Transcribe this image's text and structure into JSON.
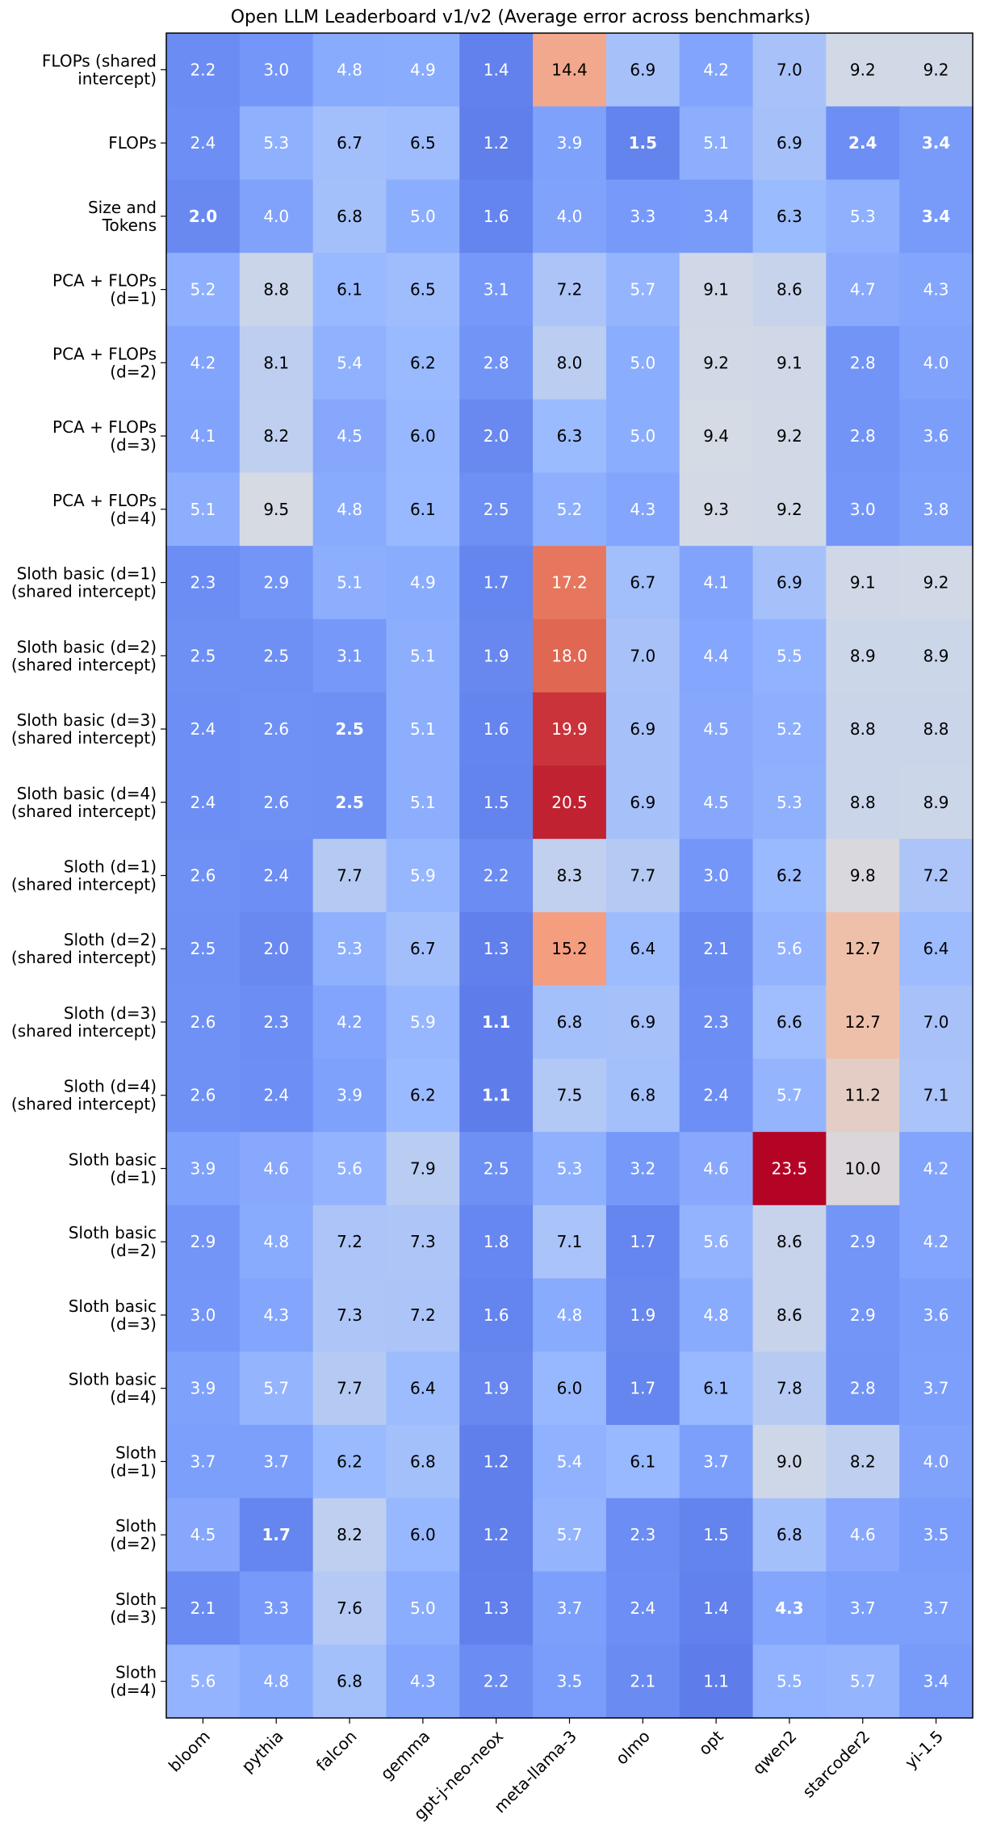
{
  "chart_data": {
    "type": "heatmap",
    "title": "Open LLM Leaderboard v1/v2 (Average error across benchmarks)",
    "xlabel": "",
    "ylabel": "",
    "columns": [
      "bloom",
      "pythia",
      "falcon",
      "gemma",
      "gpt-j-neo-neox",
      "meta-llama-3",
      "olmo",
      "opt",
      "qwen2",
      "starcoder2",
      "yi-1.5"
    ],
    "rows": [
      {
        "label": [
          "FLOPs (shared",
          "intercept)"
        ],
        "values": [
          2.2,
          3.0,
          4.8,
          4.9,
          1.4,
          14.4,
          6.9,
          4.2,
          7.0,
          9.2,
          9.2
        ]
      },
      {
        "label": [
          "FLOPs"
        ],
        "values": [
          2.4,
          5.3,
          6.7,
          6.5,
          1.2,
          3.9,
          1.5,
          5.1,
          6.9,
          2.4,
          3.4
        ]
      },
      {
        "label": [
          "Size and",
          "Tokens"
        ],
        "values": [
          2.0,
          4.0,
          6.8,
          5.0,
          1.6,
          4.0,
          3.3,
          3.4,
          6.3,
          5.3,
          3.4
        ]
      },
      {
        "label": [
          "PCA + FLOPs",
          "(d=1)"
        ],
        "values": [
          5.2,
          8.8,
          6.1,
          6.5,
          3.1,
          7.2,
          5.7,
          9.1,
          8.6,
          4.7,
          4.3
        ]
      },
      {
        "label": [
          "PCA + FLOPs",
          "(d=2)"
        ],
        "values": [
          4.2,
          8.1,
          5.4,
          6.2,
          2.8,
          8.0,
          5.0,
          9.2,
          9.1,
          2.8,
          4.0
        ]
      },
      {
        "label": [
          "PCA + FLOPs",
          "(d=3)"
        ],
        "values": [
          4.1,
          8.2,
          4.5,
          6.0,
          2.0,
          6.3,
          5.0,
          9.4,
          9.2,
          2.8,
          3.6
        ]
      },
      {
        "label": [
          "PCA + FLOPs",
          "(d=4)"
        ],
        "values": [
          5.1,
          9.5,
          4.8,
          6.1,
          2.5,
          5.2,
          4.3,
          9.3,
          9.2,
          3.0,
          3.8
        ]
      },
      {
        "label": [
          "Sloth basic (d=1)",
          "(shared intercept)"
        ],
        "values": [
          2.3,
          2.9,
          5.1,
          4.9,
          1.7,
          17.2,
          6.7,
          4.1,
          6.9,
          9.1,
          9.2
        ]
      },
      {
        "label": [
          "Sloth basic (d=2)",
          "(shared intercept)"
        ],
        "values": [
          2.5,
          2.5,
          3.1,
          5.1,
          1.9,
          18.0,
          7.0,
          4.4,
          5.5,
          8.9,
          8.9
        ]
      },
      {
        "label": [
          "Sloth basic (d=3)",
          "(shared intercept)"
        ],
        "values": [
          2.4,
          2.6,
          2.5,
          5.1,
          1.6,
          19.9,
          6.9,
          4.5,
          5.2,
          8.8,
          8.8
        ]
      },
      {
        "label": [
          "Sloth basic (d=4)",
          "(shared intercept)"
        ],
        "values": [
          2.4,
          2.6,
          2.5,
          5.1,
          1.5,
          20.5,
          6.9,
          4.5,
          5.3,
          8.8,
          8.9
        ]
      },
      {
        "label": [
          "Sloth (d=1)",
          "(shared intercept)"
        ],
        "values": [
          2.6,
          2.4,
          7.7,
          5.9,
          2.2,
          8.3,
          7.7,
          3.0,
          6.2,
          9.8,
          7.2
        ]
      },
      {
        "label": [
          "Sloth (d=2)",
          "(shared intercept)"
        ],
        "values": [
          2.5,
          2.0,
          5.3,
          6.7,
          1.3,
          15.2,
          6.4,
          2.1,
          5.6,
          12.7,
          6.4
        ]
      },
      {
        "label": [
          "Sloth (d=3)",
          "(shared intercept)"
        ],
        "values": [
          2.6,
          2.3,
          4.2,
          5.9,
          1.1,
          6.8,
          6.9,
          2.3,
          6.6,
          12.7,
          7.0
        ]
      },
      {
        "label": [
          "Sloth (d=4)",
          "(shared intercept)"
        ],
        "values": [
          2.6,
          2.4,
          3.9,
          6.2,
          1.1,
          7.5,
          6.8,
          2.4,
          5.7,
          11.2,
          7.1
        ]
      },
      {
        "label": [
          "Sloth basic",
          "(d=1)"
        ],
        "values": [
          3.9,
          4.6,
          5.6,
          7.9,
          2.5,
          5.3,
          3.2,
          4.6,
          23.5,
          10.0,
          4.2
        ]
      },
      {
        "label": [
          "Sloth basic",
          "(d=2)"
        ],
        "values": [
          2.9,
          4.8,
          7.2,
          7.3,
          1.8,
          7.1,
          1.7,
          5.6,
          8.6,
          2.9,
          4.2
        ]
      },
      {
        "label": [
          "Sloth basic",
          "(d=3)"
        ],
        "values": [
          3.0,
          4.3,
          7.3,
          7.2,
          1.6,
          4.8,
          1.9,
          4.8,
          8.6,
          2.9,
          3.6
        ]
      },
      {
        "label": [
          "Sloth basic",
          "(d=4)"
        ],
        "values": [
          3.9,
          5.7,
          7.7,
          6.4,
          1.9,
          6.0,
          1.7,
          6.1,
          7.8,
          2.8,
          3.7
        ]
      },
      {
        "label": [
          "Sloth",
          "(d=1)"
        ],
        "values": [
          3.7,
          3.7,
          6.2,
          6.8,
          1.2,
          5.4,
          6.1,
          3.7,
          9.0,
          8.2,
          4.0
        ]
      },
      {
        "label": [
          "Sloth",
          "(d=2)"
        ],
        "values": [
          4.5,
          1.7,
          8.2,
          6.0,
          1.2,
          5.7,
          2.3,
          1.5,
          6.8,
          4.6,
          3.5
        ]
      },
      {
        "label": [
          "Sloth",
          "(d=3)"
        ],
        "values": [
          2.1,
          3.3,
          7.6,
          5.0,
          1.3,
          3.7,
          2.4,
          1.4,
          4.3,
          3.7,
          3.7
        ]
      },
      {
        "label": [
          "Sloth",
          "(d=4)"
        ],
        "values": [
          5.6,
          4.8,
          6.8,
          4.3,
          2.2,
          3.5,
          2.1,
          1.1,
          5.5,
          5.7,
          3.4
        ]
      }
    ],
    "bold_cells": [
      [
        1,
        6
      ],
      [
        1,
        9
      ],
      [
        1,
        10
      ],
      [
        2,
        0
      ],
      [
        2,
        10
      ],
      [
        9,
        2
      ],
      [
        10,
        2
      ],
      [
        13,
        4
      ],
      [
        14,
        4
      ],
      [
        20,
        1
      ],
      [
        21,
        8
      ],
      [
        23,
        3
      ],
      [
        23,
        5
      ],
      [
        23,
        7
      ],
      [
        23,
        10
      ]
    ],
    "colormap": "coolwarm",
    "color_range": [
      -2.8,
      21.5
    ],
    "text_color_light": "#ffffff",
    "text_color_dark": "#000000"
  }
}
